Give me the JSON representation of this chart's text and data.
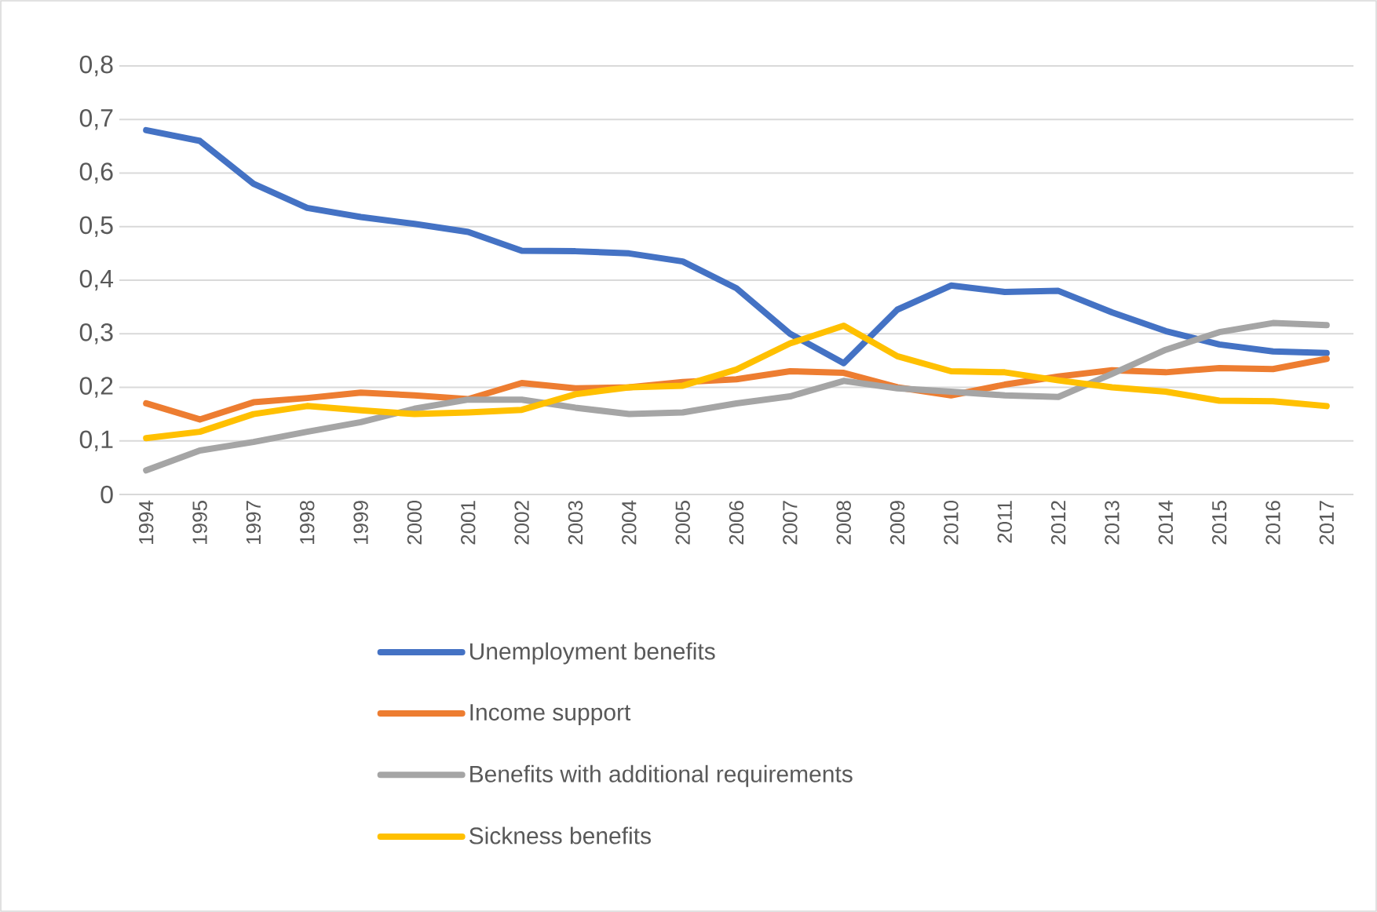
{
  "chart_data": {
    "type": "line",
    "categories": [
      "1994",
      "1995",
      "1997",
      "1998",
      "1999",
      "2000",
      "2001",
      "2002",
      "2003",
      "2004",
      "2005",
      "2006",
      "2007",
      "2008",
      "2009",
      "2010",
      "2011",
      "2012",
      "2013",
      "2014",
      "2015",
      "2016",
      "2017"
    ],
    "series": [
      {
        "name": "Unemployment benefits",
        "color": "#4472c4",
        "values": [
          0.68,
          0.66,
          0.58,
          0.535,
          0.518,
          0.505,
          0.49,
          0.455,
          0.454,
          0.45,
          0.435,
          0.385,
          0.3,
          0.245,
          0.345,
          0.39,
          0.378,
          0.38,
          0.34,
          0.305,
          0.28,
          0.267,
          0.264
        ]
      },
      {
        "name": "Income support",
        "color": "#ed7d31",
        "values": [
          0.17,
          0.14,
          0.172,
          0.18,
          0.19,
          0.185,
          0.178,
          0.208,
          0.198,
          0.2,
          0.21,
          0.215,
          0.23,
          0.227,
          0.2,
          0.185,
          0.205,
          0.22,
          0.232,
          0.228,
          0.236,
          0.234,
          0.253
        ]
      },
      {
        "name": "Benefits with additional requirements",
        "color": "#a5a5a5",
        "values": [
          0.045,
          0.082,
          0.098,
          0.117,
          0.135,
          0.16,
          0.177,
          0.177,
          0.162,
          0.15,
          0.153,
          0.17,
          0.183,
          0.212,
          0.198,
          0.192,
          0.185,
          0.182,
          0.225,
          0.27,
          0.303,
          0.32,
          0.316
        ]
      },
      {
        "name": "Sickness benefits",
        "color": "#ffc000",
        "values": [
          0.105,
          0.117,
          0.15,
          0.165,
          0.157,
          0.15,
          0.153,
          0.158,
          0.187,
          0.2,
          0.203,
          0.233,
          0.282,
          0.315,
          0.258,
          0.23,
          0.228,
          0.213,
          0.2,
          0.192,
          0.175,
          0.174,
          0.165
        ]
      }
    ],
    "ylim": [
      0,
      0.8
    ],
    "yticks": [
      0,
      {
        "value": 0.1,
        "label": "0,1"
      },
      {
        "value": 0.2,
        "label": "0,2"
      },
      {
        "value": 0.3,
        "label": "0,3"
      },
      {
        "value": 0.4,
        "label": "0,4"
      },
      {
        "value": 0.5,
        "label": "0,5"
      },
      {
        "value": 0.6,
        "label": "0,6"
      },
      {
        "value": 0.7,
        "label": "0,7"
      },
      {
        "value": 0.8,
        "label": "0,8"
      }
    ],
    "grid": "y",
    "legend": "bottom"
  }
}
